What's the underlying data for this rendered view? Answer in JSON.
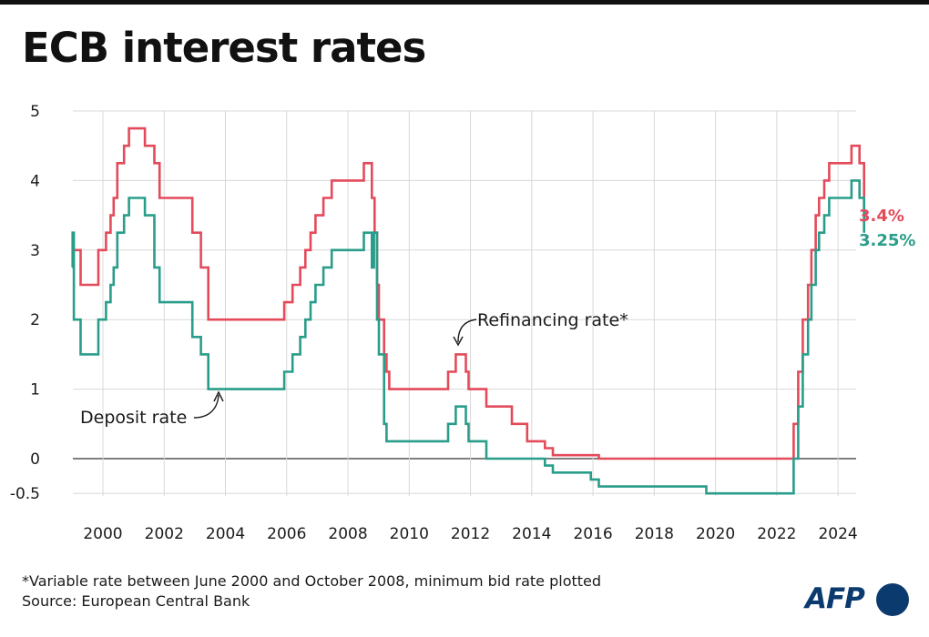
{
  "title": "ECB interest rates",
  "footnote": "*Variable rate between June 2000 and October 2008, minimum bid rate plotted",
  "source": "Source: European Central Bank",
  "logo_text": "AFP",
  "colors": {
    "refi": "#e34a5a",
    "deposit": "#2a9d8a",
    "grid": "#d8d8d8",
    "zero": "#333333",
    "logo": "#0b3a6e"
  },
  "chart_data": {
    "type": "line",
    "title": "ECB interest rates",
    "xlabel": "",
    "ylabel": "",
    "xlim": [
      1999.0,
      2024.85
    ],
    "ylim": [
      -0.6,
      5.0
    ],
    "grid": true,
    "yticks": [
      5,
      4,
      3,
      2,
      1,
      0,
      -0.5
    ],
    "ytick_labels": [
      "5",
      "4",
      "3",
      "2",
      "1",
      "0",
      "-0.5"
    ],
    "xticks": [
      2000,
      2002,
      2004,
      2006,
      2008,
      2010,
      2012,
      2014,
      2016,
      2018,
      2020,
      2022,
      2024
    ],
    "xtick_labels": [
      "2000",
      "2002",
      "2004",
      "2006",
      "2008",
      "2010",
      "2012",
      "2014",
      "2016",
      "2018",
      "2020",
      "2022",
      "2024"
    ],
    "series": [
      {
        "name": "Refinancing rate*",
        "color": "#e34a5a",
        "end_label": "3.4%",
        "x": [
          1999.0,
          1999.27,
          1999.85,
          2000.1,
          2000.25,
          2000.35,
          2000.47,
          2000.69,
          2000.85,
          2001.37,
          2001.68,
          2001.85,
          2002.92,
          2003.2,
          2003.44,
          2005.92,
          2006.19,
          2006.44,
          2006.61,
          2006.78,
          2006.94,
          2007.2,
          2007.47,
          2008.52,
          2008.78,
          2008.87,
          2008.95,
          2009.01,
          2009.18,
          2009.26,
          2009.35,
          2011.27,
          2011.52,
          2011.85,
          2011.94,
          2012.52,
          2013.35,
          2013.85,
          2014.43,
          2014.69,
          2016.19,
          2022.55,
          2022.7,
          2022.85,
          2023.02,
          2023.13,
          2023.27,
          2023.38,
          2023.55,
          2023.71,
          2024.44,
          2024.7,
          2024.85
        ],
        "y": [
          3.0,
          2.5,
          3.0,
          3.25,
          3.5,
          3.75,
          4.25,
          4.5,
          4.75,
          4.5,
          4.25,
          3.75,
          3.25,
          2.75,
          2.0,
          2.25,
          2.5,
          2.75,
          3.0,
          3.25,
          3.5,
          3.75,
          4.0,
          4.25,
          3.75,
          3.25,
          2.5,
          2.0,
          1.5,
          1.25,
          1.0,
          1.25,
          1.5,
          1.25,
          1.0,
          0.75,
          0.5,
          0.25,
          0.15,
          0.05,
          0.0,
          0.5,
          1.25,
          2.0,
          2.5,
          3.0,
          3.5,
          3.75,
          4.0,
          4.25,
          4.5,
          4.25,
          3.4
        ]
      },
      {
        "name": "Deposit rate",
        "color": "#2a9d8a",
        "end_label": "3.25%",
        "x": [
          1999.0,
          1999.01,
          1999.05,
          1999.27,
          1999.85,
          2000.1,
          2000.25,
          2000.35,
          2000.47,
          2000.69,
          2000.85,
          2001.37,
          2001.68,
          2001.85,
          2002.92,
          2003.2,
          2003.44,
          2005.92,
          2006.19,
          2006.44,
          2006.61,
          2006.78,
          2006.94,
          2007.2,
          2007.47,
          2008.52,
          2008.78,
          2008.85,
          2008.95,
          2009.01,
          2009.18,
          2009.26,
          2009.35,
          2011.27,
          2011.52,
          2011.85,
          2011.94,
          2012.52,
          2014.43,
          2014.69,
          2015.93,
          2016.19,
          2019.7,
          2022.55,
          2022.7,
          2022.85,
          2023.02,
          2023.13,
          2023.27,
          2023.38,
          2023.55,
          2023.71,
          2024.44,
          2024.7,
          2024.85
        ],
        "y": [
          2.75,
          3.25,
          2.0,
          1.5,
          2.0,
          2.25,
          2.5,
          2.75,
          3.25,
          3.5,
          3.75,
          3.5,
          2.75,
          2.25,
          1.75,
          1.5,
          1.0,
          1.25,
          1.5,
          1.75,
          2.0,
          2.25,
          2.5,
          2.75,
          3.0,
          3.25,
          2.75,
          3.25,
          2.0,
          1.5,
          0.5,
          0.25,
          0.25,
          0.5,
          0.75,
          0.5,
          0.25,
          0.0,
          -0.1,
          -0.2,
          -0.3,
          -0.4,
          -0.5,
          0.0,
          0.75,
          1.5,
          2.0,
          2.5,
          3.0,
          3.25,
          3.5,
          3.75,
          4.0,
          3.75,
          3.25
        ]
      }
    ],
    "annotations": [
      {
        "text": "Refinancing rate*"
      },
      {
        "text": "Deposit rate"
      }
    ]
  }
}
